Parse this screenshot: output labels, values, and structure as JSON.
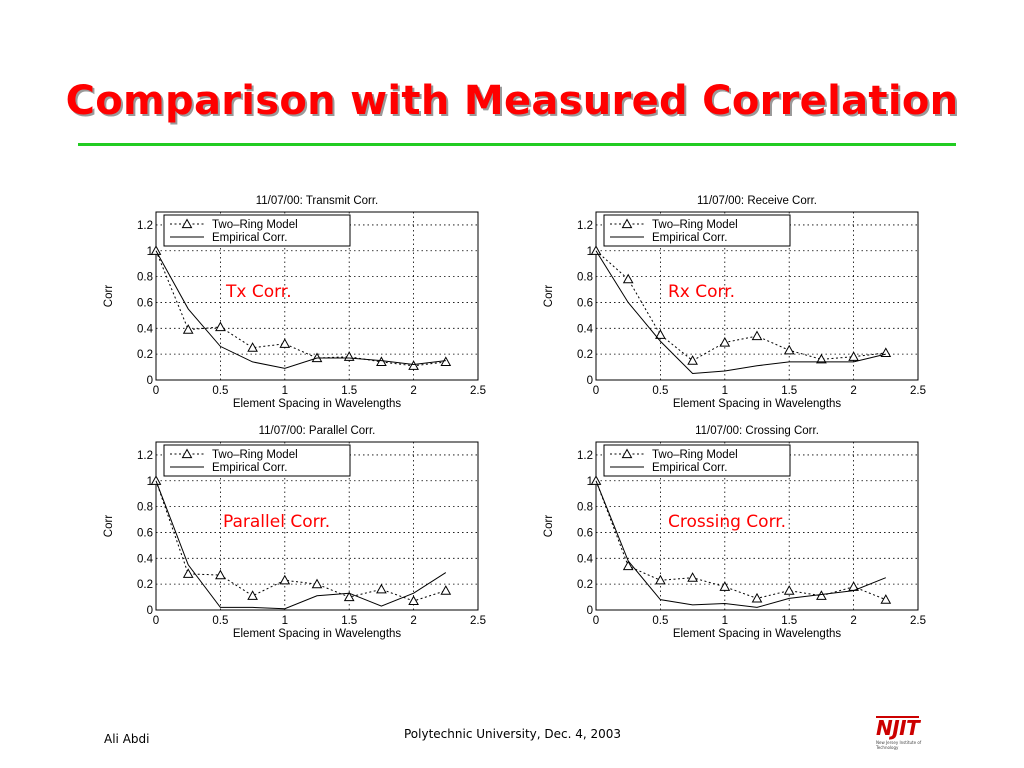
{
  "slide": {
    "title": "Comparison with Measured Correlation",
    "footer_author": "Ali Abdi",
    "footer_center": "Polytechnic University, Dec. 4, 2003",
    "logo_text": "NJIT",
    "logo_subtext": "New Jersey Institute of Technology",
    "accent_color": "#ff0000",
    "rule_color": "#22cc22"
  },
  "chart_data": [
    {
      "type": "line",
      "title": "11/07/00: Transmit Corr.",
      "caption": "Tx Corr.",
      "xlabel": "Element Spacing in Wavelengths",
      "ylabel": "Corr",
      "xlim": [
        0,
        2.5
      ],
      "ylim": [
        0,
        1.3
      ],
      "xticks": [
        "0",
        "0.5",
        "1",
        "1.5",
        "2",
        "2.5"
      ],
      "yticks": [
        "0",
        "0.2",
        "0.4",
        "0.6",
        "0.8",
        "1",
        "1.2"
      ],
      "grid": true,
      "legend": "top-left",
      "series": [
        {
          "name": "Two–Ring Model",
          "style": "dotted-triangle",
          "x": [
            0,
            0.25,
            0.5,
            0.75,
            1,
            1.25,
            1.5,
            1.75,
            2,
            2.25
          ],
          "y": [
            1.0,
            0.39,
            0.41,
            0.25,
            0.28,
            0.17,
            0.18,
            0.14,
            0.11,
            0.14
          ]
        },
        {
          "name": "Empirical Corr.",
          "style": "solid",
          "x": [
            0,
            0.25,
            0.5,
            0.75,
            1,
            1.25,
            1.5,
            1.75,
            2,
            2.25
          ],
          "y": [
            1.0,
            0.55,
            0.26,
            0.14,
            0.09,
            0.17,
            0.17,
            0.15,
            0.12,
            0.15
          ]
        }
      ]
    },
    {
      "type": "line",
      "title": "11/07/00: Receive Corr.",
      "caption": "Rx Corr.",
      "xlabel": "Element Spacing in Wavelengths",
      "ylabel": "Corr",
      "xlim": [
        0,
        2.5
      ],
      "ylim": [
        0,
        1.3
      ],
      "xticks": [
        "0",
        "0.5",
        "1",
        "1.5",
        "2",
        "2.5"
      ],
      "yticks": [
        "0",
        "0.2",
        "0.4",
        "0.6",
        "0.8",
        "1",
        "1.2"
      ],
      "grid": true,
      "legend": "top-left",
      "series": [
        {
          "name": "Two–Ring Model",
          "style": "dotted-triangle",
          "x": [
            0,
            0.25,
            0.5,
            0.75,
            1,
            1.25,
            1.5,
            1.75,
            2,
            2.25
          ],
          "y": [
            1.0,
            0.78,
            0.35,
            0.15,
            0.29,
            0.34,
            0.23,
            0.16,
            0.18,
            0.21
          ]
        },
        {
          "name": "Empirical Corr.",
          "style": "solid",
          "x": [
            0,
            0.25,
            0.5,
            0.75,
            1,
            1.25,
            1.5,
            1.75,
            2,
            2.25
          ],
          "y": [
            1.0,
            0.6,
            0.3,
            0.05,
            0.07,
            0.11,
            0.14,
            0.14,
            0.14,
            0.2
          ]
        }
      ]
    },
    {
      "type": "line",
      "title": "11/07/00: Parallel Corr.",
      "caption": "Parallel Corr.",
      "xlabel": "Element Spacing in Wavelengths",
      "ylabel": "Corr",
      "xlim": [
        0,
        2.5
      ],
      "ylim": [
        0,
        1.3
      ],
      "xticks": [
        "0",
        "0.5",
        "1",
        "1.5",
        "2",
        "2.5"
      ],
      "yticks": [
        "0",
        "0.2",
        "0.4",
        "0.6",
        "0.8",
        "1",
        "1.2"
      ],
      "grid": true,
      "legend": "top-left",
      "series": [
        {
          "name": "Two–Ring Model",
          "style": "dotted-triangle",
          "x": [
            0,
            0.25,
            0.5,
            0.75,
            1,
            1.25,
            1.5,
            1.75,
            2,
            2.25
          ],
          "y": [
            1.0,
            0.28,
            0.27,
            0.11,
            0.23,
            0.2,
            0.1,
            0.16,
            0.07,
            0.15
          ]
        },
        {
          "name": "Empirical Corr.",
          "style": "solid",
          "x": [
            0,
            0.25,
            0.5,
            0.75,
            1,
            1.25,
            1.5,
            1.75,
            2,
            2.25
          ],
          "y": [
            1.0,
            0.35,
            0.02,
            0.02,
            0.01,
            0.11,
            0.13,
            0.03,
            0.13,
            0.29
          ]
        }
      ]
    },
    {
      "type": "line",
      "title": "11/07/00: Crossing Corr.",
      "caption": "Crossing Corr.",
      "xlabel": "Element Spacing in Wavelengths",
      "ylabel": "Corr",
      "xlim": [
        0,
        2.5
      ],
      "ylim": [
        0,
        1.3
      ],
      "xticks": [
        "0",
        "0.5",
        "1",
        "1.5",
        "2",
        "2.5"
      ],
      "yticks": [
        "0",
        "0.2",
        "0.4",
        "0.6",
        "0.8",
        "1",
        "1.2"
      ],
      "grid": true,
      "legend": "top-left",
      "series": [
        {
          "name": "Two–Ring Model",
          "style": "dotted-triangle",
          "x": [
            0,
            0.25,
            0.5,
            0.75,
            1,
            1.25,
            1.5,
            1.75,
            2,
            2.25
          ],
          "y": [
            1.0,
            0.34,
            0.23,
            0.25,
            0.18,
            0.09,
            0.15,
            0.11,
            0.18,
            0.08
          ]
        },
        {
          "name": "Empirical Corr.",
          "style": "solid",
          "x": [
            0,
            0.25,
            0.5,
            0.75,
            1,
            1.25,
            1.5,
            1.75,
            2,
            2.25
          ],
          "y": [
            1.0,
            0.38,
            0.08,
            0.04,
            0.05,
            0.02,
            0.09,
            0.12,
            0.15,
            0.25
          ]
        }
      ]
    }
  ]
}
